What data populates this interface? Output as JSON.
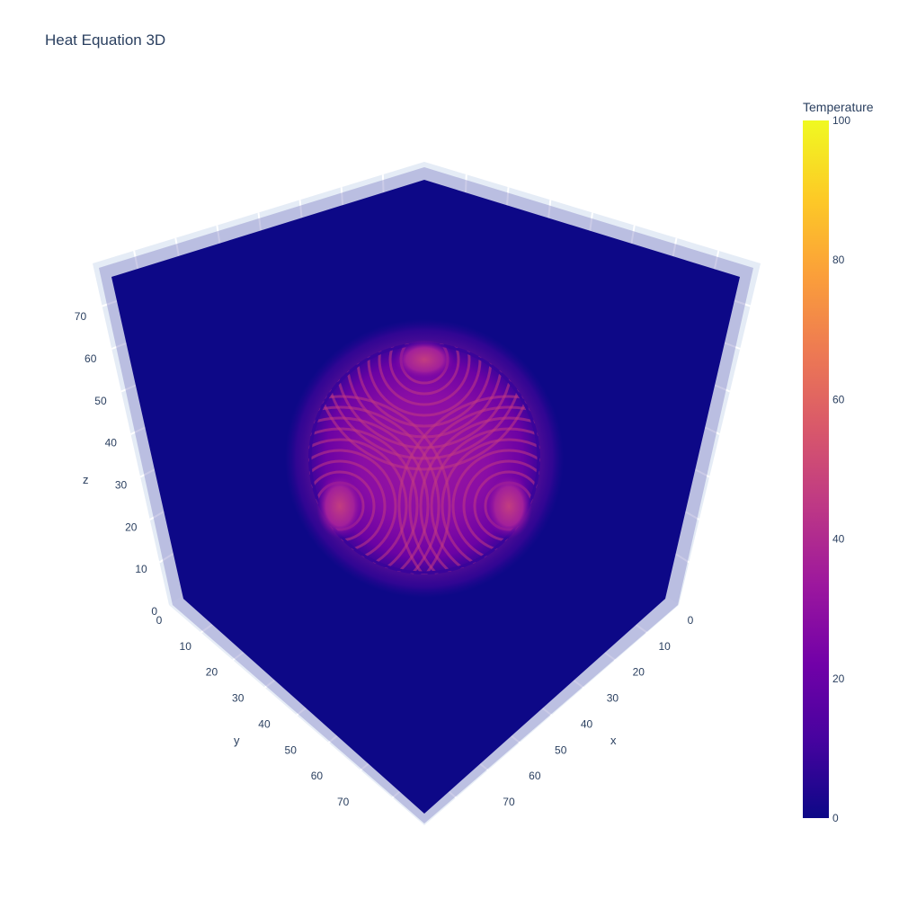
{
  "chart_data": {
    "type": "volume",
    "title": "Heat Equation 3D",
    "axes": {
      "x": {
        "label": "x",
        "ticks": [
          "0",
          "10",
          "20",
          "30",
          "40",
          "50",
          "60",
          "70"
        ],
        "range": [
          0,
          79
        ]
      },
      "y": {
        "label": "y",
        "ticks": [
          "0",
          "10",
          "20",
          "30",
          "40",
          "50",
          "60",
          "70"
        ],
        "range": [
          0,
          79
        ]
      },
      "z": {
        "label": "z",
        "ticks": [
          "0",
          "10",
          "20",
          "30",
          "40",
          "50",
          "60",
          "70"
        ],
        "range": [
          0,
          79
        ]
      }
    },
    "colorbar": {
      "title": "Temperature",
      "min": 0,
      "max": 100,
      "ticks": [
        "0",
        "20",
        "40",
        "60",
        "80",
        "100"
      ],
      "colorscale": [
        "#0d0887",
        "#46039f",
        "#7201a8",
        "#9c179e",
        "#bd3786",
        "#d8576b",
        "#ed7953",
        "#fb9f3a",
        "#fdca26",
        "#f0f921"
      ]
    },
    "background_value": 0,
    "hot_sphere": {
      "center": [
        40,
        40,
        40
      ],
      "radius": 20,
      "peak_value": 40
    },
    "grid": true
  }
}
